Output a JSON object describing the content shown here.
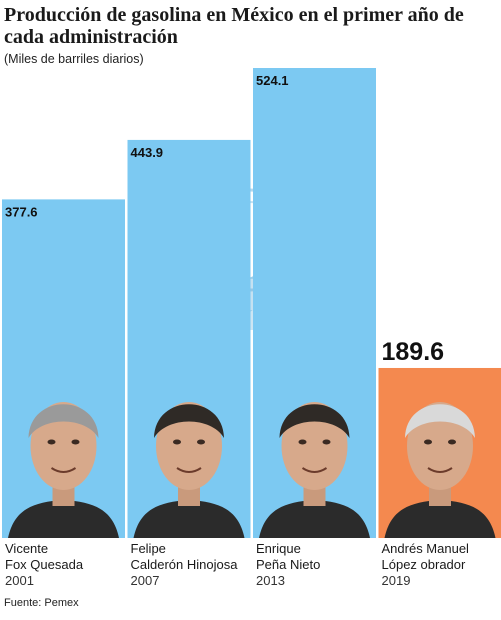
{
  "title": "Producción de gasolina en México en el primer año de cada administración",
  "subtitle": "(Miles de barriles diarios)",
  "source": "Fuente: Pemex",
  "colors": {
    "bar": "#7cc9f2",
    "highlight": "#f4894f",
    "watermark": "#5aa9d6"
  },
  "chart_data": {
    "type": "bar",
    "categories": [
      {
        "line1": "Vicente",
        "line2": "Fox Quesada",
        "year": "2001"
      },
      {
        "line1": "Felipe",
        "line2": "Calderón Hinojosa",
        "year": "2007"
      },
      {
        "line1": "Enrique",
        "line2": "Peña Nieto",
        "year": "2013"
      },
      {
        "line1": "Andrés Manuel",
        "line2": "López obrador",
        "year": "2019"
      }
    ],
    "values": [
      377.6,
      443.9,
      524.1,
      189.6
    ],
    "value_labels": [
      "377.6",
      "443.9",
      "524.1",
      "189.6"
    ],
    "highlight_index": 3,
    "ylim": [
      0,
      524.1
    ]
  }
}
